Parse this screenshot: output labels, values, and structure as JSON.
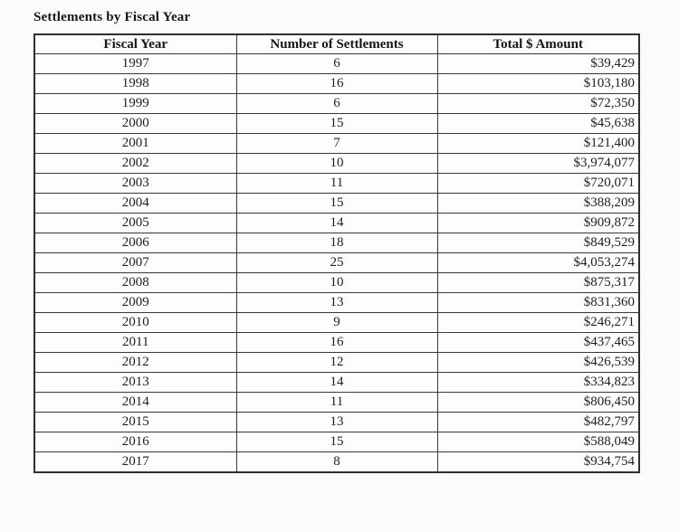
{
  "title": "Settlements by Fiscal Year",
  "table": {
    "headers": [
      "Fiscal Year",
      "Number of Settlements",
      "Total $ Amount"
    ],
    "rows": [
      [
        "1997",
        "6",
        "$39,429"
      ],
      [
        "1998",
        "16",
        "$103,180"
      ],
      [
        "1999",
        "6",
        "$72,350"
      ],
      [
        "2000",
        "15",
        "$45,638"
      ],
      [
        "2001",
        "7",
        "$121,400"
      ],
      [
        "2002",
        "10",
        "$3,974,077"
      ],
      [
        "2003",
        "11",
        "$720,071"
      ],
      [
        "2004",
        "15",
        "$388,209"
      ],
      [
        "2005",
        "14",
        "$909,872"
      ],
      [
        "2006",
        "18",
        "$849,529"
      ],
      [
        "2007",
        "25",
        "$4,053,274"
      ],
      [
        "2008",
        "10",
        "$875,317"
      ],
      [
        "2009",
        "13",
        "$831,360"
      ],
      [
        "2010",
        "9",
        "$246,271"
      ],
      [
        "2011",
        "16",
        "$437,465"
      ],
      [
        "2012",
        "12",
        "$426,539"
      ],
      [
        "2013",
        "14",
        "$334,823"
      ],
      [
        "2014",
        "11",
        "$806,450"
      ],
      [
        "2015",
        "13",
        "$482,797"
      ],
      [
        "2016",
        "15",
        "$588,049"
      ],
      [
        "2017",
        "8",
        "$934,754"
      ]
    ]
  },
  "colors": {
    "background": "#fbfbfa",
    "border": "#383838",
    "text": "#1c1c1c"
  }
}
